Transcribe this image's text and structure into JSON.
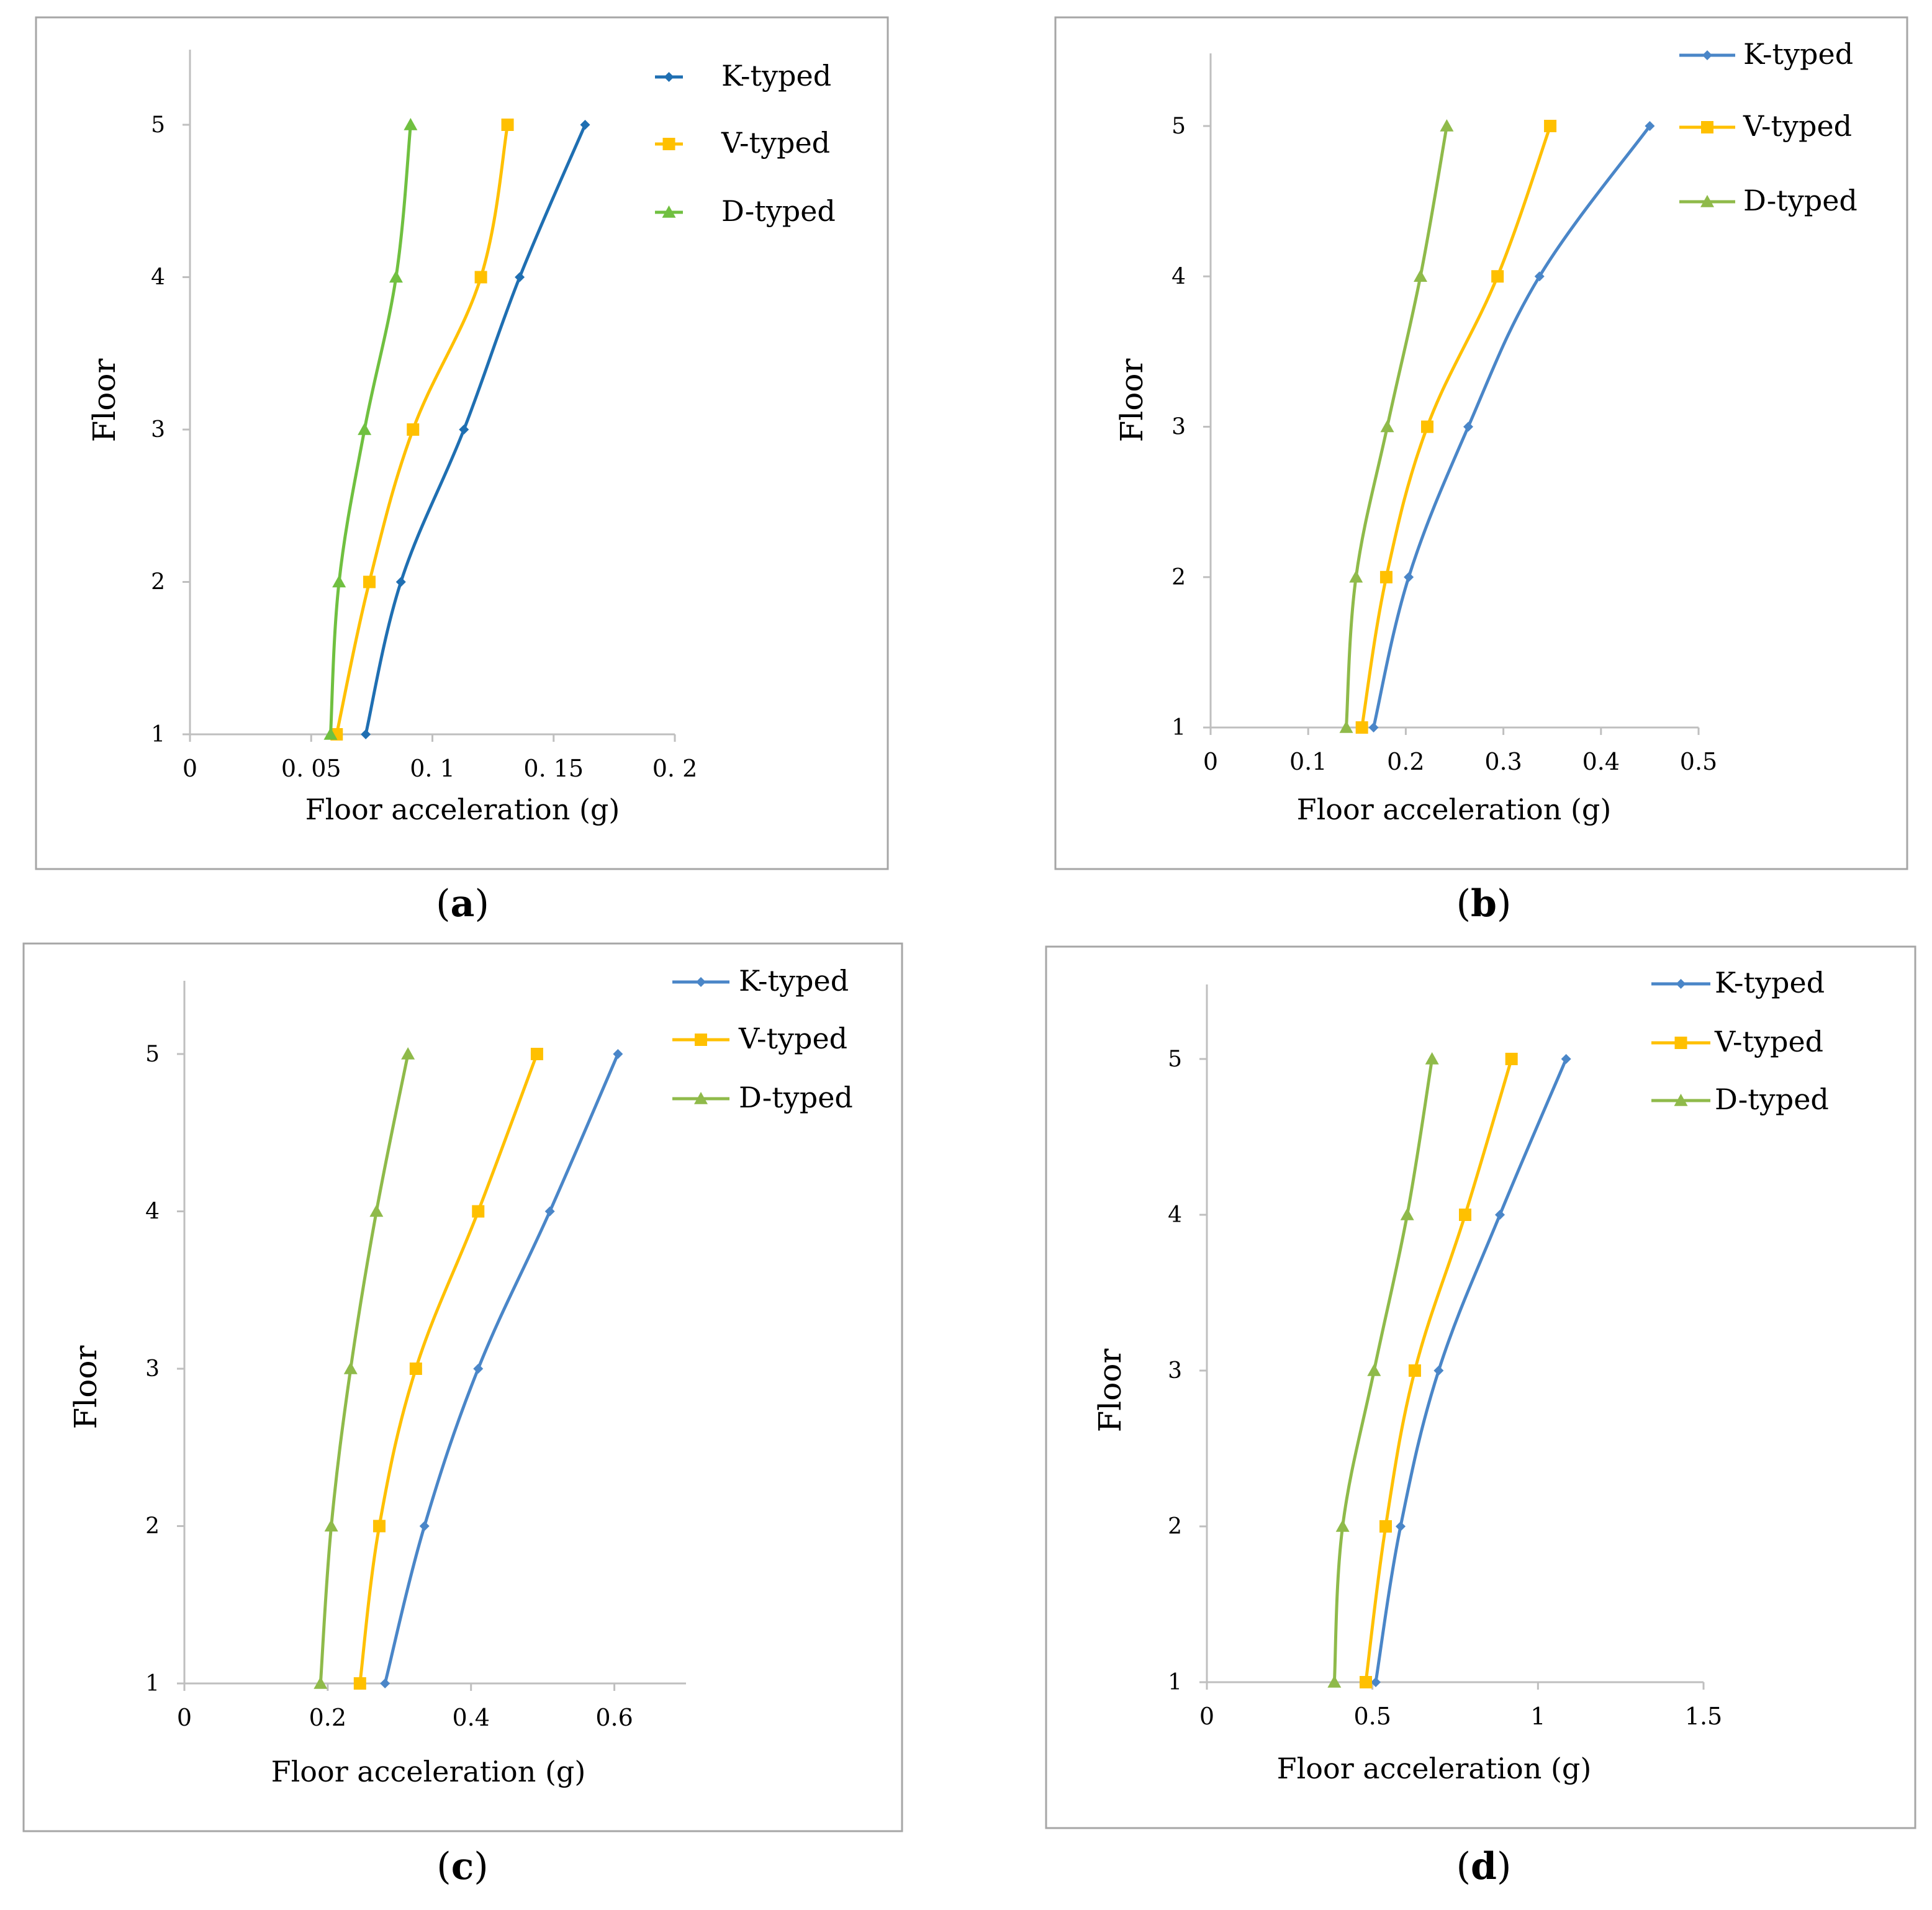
{
  "chart_data": [
    {
      "panel": "a",
      "caption": "(a)",
      "type": "line",
      "xlabel": "Floor acceleration (g)",
      "ylabel": "Floor",
      "xlim": [
        0,
        0.2
      ],
      "ylim": [
        1,
        5.5
      ],
      "xticks": [
        "0",
        "0. 05",
        "0. 1",
        "0. 15",
        "0. 2"
      ],
      "xtick_values": [
        0,
        0.05,
        0.1,
        0.15,
        0.2
      ],
      "yticks": [
        "1",
        "2",
        "3",
        "4",
        "5"
      ],
      "ytick_values": [
        1,
        2,
        3,
        4,
        5
      ],
      "legend_position": "top-right",
      "series": [
        {
          "name": "K-typed",
          "color": "#1f6fb2",
          "marker": "diamond",
          "x": [
            0.0725,
            0.087,
            0.113,
            0.136,
            0.163
          ],
          "y": [
            1,
            2,
            3,
            4,
            5
          ]
        },
        {
          "name": "V-typed",
          "color": "#ffc000",
          "marker": "square",
          "x": [
            0.0605,
            0.074,
            0.092,
            0.12,
            0.131
          ],
          "y": [
            1,
            2,
            3,
            4,
            5
          ]
        },
        {
          "name": "D-typed",
          "color": "#70c040",
          "marker": "triangle",
          "x": [
            0.058,
            0.0615,
            0.072,
            0.085,
            0.091
          ],
          "y": [
            1,
            2,
            3,
            4,
            5
          ]
        }
      ]
    },
    {
      "panel": "b",
      "caption": "(b)",
      "type": "line",
      "xlabel": "Floor acceleration (g)",
      "ylabel": "Floor",
      "xlim": [
        0,
        0.5
      ],
      "ylim": [
        1,
        5.5
      ],
      "xticks": [
        "0",
        "0.1",
        "0.2",
        "0.3",
        "0.4",
        "0.5"
      ],
      "xtick_values": [
        0,
        0.1,
        0.2,
        0.3,
        0.4,
        0.5
      ],
      "yticks": [
        "1",
        "2",
        "3",
        "4",
        "5"
      ],
      "ytick_values": [
        1,
        2,
        3,
        4,
        5
      ],
      "legend_position": "top-right",
      "series": [
        {
          "name": "K-typed",
          "color": "#4a86c8",
          "marker": "diamond",
          "x": [
            0.167,
            0.203,
            0.264,
            0.337,
            0.45
          ],
          "y": [
            1,
            2,
            3,
            4,
            5
          ]
        },
        {
          "name": "V-typed",
          "color": "#ffc000",
          "marker": "square",
          "x": [
            0.155,
            0.18,
            0.222,
            0.294,
            0.348
          ],
          "y": [
            1,
            2,
            3,
            4,
            5
          ]
        },
        {
          "name": "D-typed",
          "color": "#8fba4a",
          "marker": "triangle",
          "x": [
            0.139,
            0.149,
            0.181,
            0.215,
            0.242
          ],
          "y": [
            1,
            2,
            3,
            4,
            5
          ]
        }
      ]
    },
    {
      "panel": "c",
      "caption": "(c)",
      "type": "line",
      "xlabel": "Floor acceleration (g)",
      "ylabel": "Floor",
      "xlim": [
        0,
        0.7
      ],
      "ylim": [
        1,
        5.5
      ],
      "xticks": [
        "0",
        "0.2",
        "0.4",
        "0.6"
      ],
      "xtick_values": [
        0,
        0.2,
        0.4,
        0.6
      ],
      "yticks": [
        "1",
        "2",
        "3",
        "4",
        "5"
      ],
      "ytick_values": [
        1,
        2,
        3,
        4,
        5
      ],
      "legend_position": "top-right",
      "series": [
        {
          "name": "K-typed",
          "color": "#4a86c8",
          "marker": "diamond",
          "x": [
            0.28,
            0.335,
            0.41,
            0.51,
            0.605
          ],
          "y": [
            1,
            2,
            3,
            4,
            5
          ]
        },
        {
          "name": "V-typed",
          "color": "#ffc000",
          "marker": "square",
          "x": [
            0.245,
            0.272,
            0.323,
            0.41,
            0.492
          ],
          "y": [
            1,
            2,
            3,
            4,
            5
          ]
        },
        {
          "name": "D-typed",
          "color": "#8fba4a",
          "marker": "triangle",
          "x": [
            0.19,
            0.205,
            0.232,
            0.268,
            0.312
          ],
          "y": [
            1,
            2,
            3,
            4,
            5
          ]
        }
      ]
    },
    {
      "panel": "d",
      "caption": "(d)",
      "type": "line",
      "xlabel": "Floor acceleration (g)",
      "ylabel": "Floor",
      "xlim": [
        0,
        1.5
      ],
      "ylim": [
        1,
        5.5
      ],
      "xticks": [
        "0",
        "0.5",
        "1",
        "1.5"
      ],
      "xtick_values": [
        0,
        0.5,
        1,
        1.5
      ],
      "yticks": [
        "1",
        "2",
        "3",
        "4",
        "5"
      ],
      "ytick_values": [
        1,
        2,
        3,
        4,
        5
      ],
      "legend_position": "top-right",
      "series": [
        {
          "name": "K-typed",
          "color": "#4a86c8",
          "marker": "diamond",
          "x": [
            0.51,
            0.585,
            0.7,
            0.885,
            1.085
          ],
          "y": [
            1,
            2,
            3,
            4,
            5
          ]
        },
        {
          "name": "V-typed",
          "color": "#ffc000",
          "marker": "square",
          "x": [
            0.48,
            0.54,
            0.628,
            0.78,
            0.92
          ],
          "y": [
            1,
            2,
            3,
            4,
            5
          ]
        },
        {
          "name": "D-typed",
          "color": "#8fba4a",
          "marker": "triangle",
          "x": [
            0.385,
            0.41,
            0.505,
            0.605,
            0.68
          ],
          "y": [
            1,
            2,
            3,
            4,
            5
          ]
        }
      ]
    }
  ]
}
